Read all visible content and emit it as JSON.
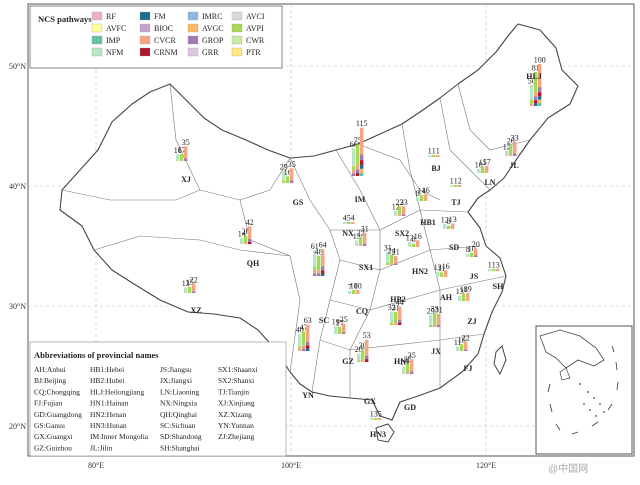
{
  "legend": {
    "title": "NCS pathways",
    "items": [
      {
        "code": "RF",
        "color": "#e8b4b8"
      },
      {
        "code": "FM",
        "color": "#1f6f8b"
      },
      {
        "code": "IMRC",
        "color": "#8fb8de"
      },
      {
        "code": "AVCI",
        "color": "#d9d9d9"
      },
      {
        "code": "AVFC",
        "color": "#ffff99"
      },
      {
        "code": "BIOC",
        "color": "#c2a5cf"
      },
      {
        "code": "AVGC",
        "color": "#fdb863"
      },
      {
        "code": "AVPI",
        "color": "#a6d854"
      },
      {
        "code": "IMP",
        "color": "#66c2a5"
      },
      {
        "code": "CVCR",
        "color": "#f4a582"
      },
      {
        "code": "GROP",
        "color": "#9e7bb5"
      },
      {
        "code": "CWR",
        "color": "#c7e9a0"
      },
      {
        "code": "NFM",
        "color": "#b8e6c4"
      },
      {
        "code": "CRNM",
        "color": "#b2182b"
      },
      {
        "code": "GRR",
        "color": "#dcc6e0"
      },
      {
        "code": "PTR",
        "color": "#ffe680"
      }
    ]
  },
  "axes": {
    "lon_labels": [
      "80°E",
      "100°E",
      "120°E"
    ],
    "lat_labels": [
      "50°N",
      "40°N",
      "30°N",
      "20°N"
    ]
  },
  "provinces": [
    {
      "code": "HLJ",
      "values": [
        50,
        81,
        100
      ]
    },
    {
      "code": "JL",
      "values": [
        12,
        26,
        33
      ]
    },
    {
      "code": "LN",
      "values": [
        10,
        15,
        17
      ]
    },
    {
      "code": "IM",
      "values": [
        66,
        75,
        115
      ]
    },
    {
      "code": "XJ",
      "values": [
        16,
        17,
        35
      ]
    },
    {
      "code": "GS",
      "values": [
        29,
        16,
        35
      ]
    },
    {
      "code": "BJ",
      "values": [
        1,
        1,
        1
      ]
    },
    {
      "code": "TJ",
      "values": [
        1,
        1,
        2
      ]
    },
    {
      "code": "HB1",
      "values": [
        8,
        14,
        16
      ]
    },
    {
      "code": "SX2",
      "values": [
        12,
        23,
        23
      ]
    },
    {
      "code": "SD",
      "values": [
        12,
        8,
        13
      ]
    },
    {
      "code": "NX",
      "values": [
        4,
        5,
        4
      ]
    },
    {
      "code": "QH",
      "values": [
        14,
        20,
        42
      ]
    },
    {
      "code": "SX1",
      "values": [
        13,
        22,
        31
      ]
    },
    {
      "code": "HN2",
      "values": [
        12,
        8,
        16
      ]
    },
    {
      "code": "JS",
      "values": [
        8,
        10,
        20
      ]
    },
    {
      "code": "SH",
      "values": [
        1,
        1,
        3
      ]
    },
    {
      "code": "HB2",
      "values": [
        31,
        24,
        21
      ]
    },
    {
      "code": "AH",
      "values": [
        13,
        11,
        16
      ]
    },
    {
      "code": "XZ",
      "values": [
        13,
        15,
        22
      ]
    },
    {
      "code": "SC",
      "values": [
        61,
        48,
        64
      ]
    },
    {
      "code": "CQ",
      "values": [
        7,
        10,
        10
      ]
    },
    {
      "code": "ZJ",
      "values": [
        13,
        18,
        19
      ]
    },
    {
      "code": "GZ",
      "values": [
        19,
        17,
        25
      ]
    },
    {
      "code": "HN1",
      "values": [
        32,
        31,
        44
      ]
    },
    {
      "code": "JX",
      "values": [
        29,
        33,
        31
      ]
    },
    {
      "code": "FJ",
      "values": [
        11,
        16,
        22
      ]
    },
    {
      "code": "YN",
      "values": [
        40,
        47,
        63
      ]
    },
    {
      "code": "GX",
      "values": [
        20,
        30,
        53
      ]
    },
    {
      "code": "GD",
      "values": [
        18,
        25,
        35
      ]
    },
    {
      "code": "HN3",
      "values": [
        1,
        3,
        5
      ]
    }
  ],
  "abbreviations": {
    "title": "Abbreviations of provincial names",
    "entries": [
      "AH:Anhui",
      "HB1:Hebei",
      "JS:Jiangsu",
      "SX1:Shaanxi",
      "BJ:Beijing",
      "HB2:Hubei",
      "JX:Jiangxi",
      "SX2:Shanxi",
      "CQ:Chongqing",
      "HLJ:Heilongjiang",
      "LN:Liaoning",
      "TJ:Tianjin",
      "FJ:Fujian",
      "HN1:Hainan",
      "NX:Ningxia",
      "XJ:Xinjiang",
      "GD:Guangdong",
      "HN2:Henan",
      "QH:Qinghai",
      "XZ:Xizang",
      "GS:Gansu",
      "HN3:Hunan",
      "SC:Sichuan",
      "YN:Yunnan",
      "GX:Guangxi",
      "IM:Inner Mongolia",
      "SD:Shandong",
      "ZJ:Zhejiang",
      "GZ:Guizhou",
      "JL:Jilin",
      "SH:Shanghai"
    ]
  },
  "watermark": "@中国网"
}
